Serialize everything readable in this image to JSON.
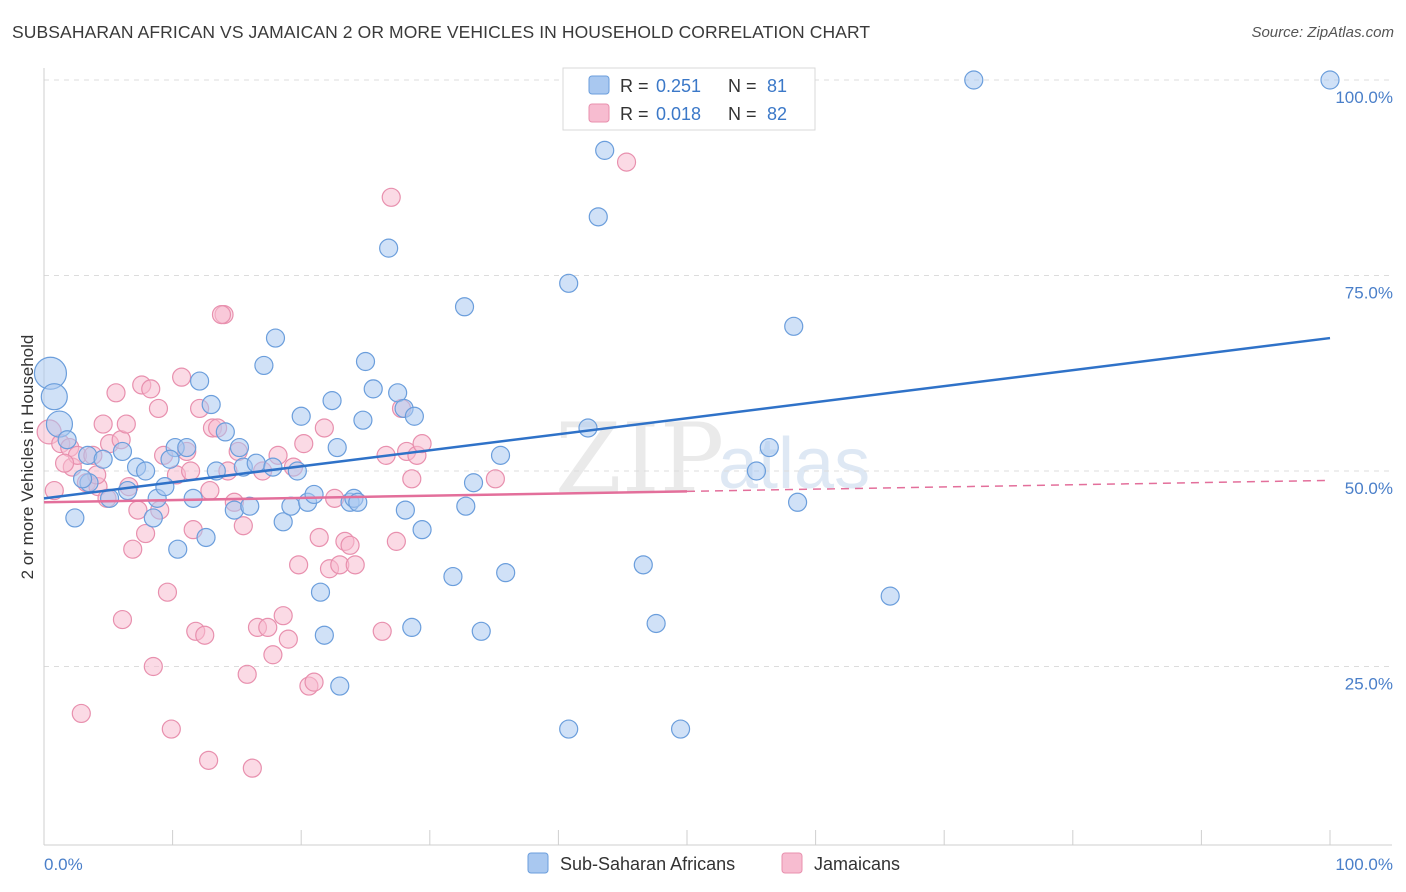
{
  "title": "SUBSAHARAN AFRICAN VS JAMAICAN 2 OR MORE VEHICLES IN HOUSEHOLD CORRELATION CHART",
  "source": "Source: ZipAtlas.com",
  "watermark": {
    "zip": "ZIP",
    "atlas": "atlas"
  },
  "legend": {
    "r_label": "R =",
    "n_label": "N =",
    "rows": [
      {
        "r": "0.251",
        "n": "81"
      },
      {
        "r": "0.018",
        "n": "82"
      }
    ]
  },
  "colors": {
    "blue_fill": "#a9c8f0",
    "blue_stroke": "#6b9edc",
    "blue_line": "#2f72c8",
    "pink_fill": "#f7bcd0",
    "pink_stroke": "#e890ae",
    "pink_line": "#e36f9b",
    "tick_text": "#4a7fc9"
  },
  "chart_data": {
    "type": "scatter",
    "title": "SUBSAHARAN AFRICAN VS JAMAICAN 2 OR MORE VEHICLES IN HOUSEHOLD CORRELATION CHART",
    "xlabel": "",
    "ylabel": "2 or more Vehicles in Household",
    "xlim": [
      0,
      100
    ],
    "ylim": [
      0,
      105
    ],
    "x_tick_labels": [
      "0.0%",
      "100.0%"
    ],
    "y_ticks": [
      25,
      50,
      75,
      100
    ],
    "y_tick_labels": [
      "25.0%",
      "50.0%",
      "75.0%",
      "100.0%"
    ],
    "grid": true,
    "legend_position": "top-center",
    "series": [
      {
        "name": "Sub-Saharan Africans",
        "color": "#a9c8f0",
        "trend": {
          "x": [
            0,
            100
          ],
          "y": [
            46.5,
            67.0
          ]
        },
        "points": [
          [
            0.5,
            62.5
          ],
          [
            0.8,
            59.5
          ],
          [
            1.2,
            56.0
          ],
          [
            1.8,
            54.0
          ],
          [
            2.4,
            44.0
          ],
          [
            3.5,
            48.5
          ],
          [
            3.4,
            52.0
          ],
          [
            4.6,
            51.5
          ],
          [
            5.1,
            46.5
          ],
          [
            6.1,
            52.5
          ],
          [
            7.2,
            50.5
          ],
          [
            7.9,
            50.0
          ],
          [
            8.5,
            44.0
          ],
          [
            8.8,
            46.5
          ],
          [
            9.4,
            48.0
          ],
          [
            10.2,
            53.0
          ],
          [
            10.4,
            40.0
          ],
          [
            11.1,
            53.0
          ],
          [
            11.6,
            46.5
          ],
          [
            12.1,
            61.5
          ],
          [
            12.6,
            41.5
          ],
          [
            13.0,
            58.5
          ],
          [
            13.4,
            50.0
          ],
          [
            14.1,
            55.0
          ],
          [
            14.8,
            45.0
          ],
          [
            15.2,
            53.0
          ],
          [
            15.5,
            50.5
          ],
          [
            16.0,
            45.5
          ],
          [
            16.5,
            51.0
          ],
          [
            17.1,
            63.5
          ],
          [
            17.8,
            50.5
          ],
          [
            18.0,
            67.0
          ],
          [
            18.6,
            43.5
          ],
          [
            19.2,
            45.5
          ],
          [
            19.7,
            50.0
          ],
          [
            20.0,
            57.0
          ],
          [
            20.5,
            46.0
          ],
          [
            21.0,
            47.0
          ],
          [
            21.5,
            34.5
          ],
          [
            21.8,
            29.0
          ],
          [
            22.4,
            59.0
          ],
          [
            22.8,
            53.0
          ],
          [
            23.0,
            22.5
          ],
          [
            23.8,
            46.0
          ],
          [
            24.1,
            46.5
          ],
          [
            24.4,
            46.0
          ],
          [
            24.8,
            56.5
          ],
          [
            25.0,
            64.0
          ],
          [
            25.6,
            60.5
          ],
          [
            26.8,
            78.5
          ],
          [
            27.5,
            60.0
          ],
          [
            28.0,
            58.0
          ],
          [
            28.1,
            45.0
          ],
          [
            28.8,
            57.0
          ],
          [
            28.6,
            30.0
          ],
          [
            29.4,
            42.5
          ],
          [
            31.8,
            36.5
          ],
          [
            32.7,
            71.0
          ],
          [
            32.8,
            45.5
          ],
          [
            33.4,
            48.5
          ],
          [
            34.0,
            29.5
          ],
          [
            35.5,
            52.0
          ],
          [
            35.9,
            37.0
          ],
          [
            40.8,
            74.0
          ],
          [
            40.8,
            17.0
          ],
          [
            42.3,
            55.5
          ],
          [
            43.1,
            82.5
          ],
          [
            43.6,
            91.0
          ],
          [
            46.6,
            38.0
          ],
          [
            47.6,
            30.5
          ],
          [
            49.5,
            17.0
          ],
          [
            55.4,
            50.0
          ],
          [
            56.4,
            53.0
          ],
          [
            58.3,
            68.5
          ],
          [
            58.6,
            46.0
          ],
          [
            65.8,
            34.0
          ],
          [
            72.3,
            100.0
          ],
          [
            100.0,
            100.0
          ],
          [
            3.0,
            49.0
          ],
          [
            6.5,
            47.5
          ],
          [
            9.8,
            51.5
          ]
        ]
      },
      {
        "name": "Jamaicans",
        "color": "#f7bcd0",
        "trend": {
          "x": [
            0,
            100
          ],
          "y": [
            46.0,
            48.8
          ]
        },
        "trend_solid_to_x": 50,
        "points": [
          [
            0.4,
            55.0
          ],
          [
            0.8,
            47.5
          ],
          [
            1.3,
            53.5
          ],
          [
            2.0,
            53.0
          ],
          [
            2.2,
            50.5
          ],
          [
            2.6,
            52.0
          ],
          [
            2.9,
            19.0
          ],
          [
            3.3,
            48.5
          ],
          [
            3.8,
            52.0
          ],
          [
            4.2,
            48.0
          ],
          [
            4.6,
            56.0
          ],
          [
            4.9,
            46.5
          ],
          [
            5.1,
            53.5
          ],
          [
            5.6,
            60.0
          ],
          [
            6.0,
            54.0
          ],
          [
            6.1,
            31.0
          ],
          [
            6.4,
            56.0
          ],
          [
            6.6,
            48.0
          ],
          [
            6.9,
            40.0
          ],
          [
            7.3,
            45.0
          ],
          [
            7.6,
            61.0
          ],
          [
            7.9,
            42.0
          ],
          [
            8.3,
            60.5
          ],
          [
            8.5,
            25.0
          ],
          [
            8.9,
            58.0
          ],
          [
            9.3,
            52.0
          ],
          [
            9.6,
            34.5
          ],
          [
            9.9,
            17.0
          ],
          [
            10.3,
            49.5
          ],
          [
            10.7,
            62.0
          ],
          [
            11.1,
            52.5
          ],
          [
            11.4,
            50.0
          ],
          [
            11.8,
            29.5
          ],
          [
            12.1,
            58.0
          ],
          [
            12.5,
            29.0
          ],
          [
            12.8,
            13.0
          ],
          [
            13.1,
            55.5
          ],
          [
            13.5,
            55.5
          ],
          [
            14.0,
            70.0
          ],
          [
            14.3,
            50.0
          ],
          [
            14.8,
            46.0
          ],
          [
            15.1,
            52.5
          ],
          [
            15.5,
            43.0
          ],
          [
            15.8,
            24.0
          ],
          [
            16.2,
            12.0
          ],
          [
            16.6,
            30.0
          ],
          [
            17.0,
            50.0
          ],
          [
            17.4,
            30.0
          ],
          [
            17.8,
            26.5
          ],
          [
            18.2,
            52.0
          ],
          [
            18.6,
            31.5
          ],
          [
            19.0,
            28.5
          ],
          [
            19.4,
            50.5
          ],
          [
            19.8,
            38.0
          ],
          [
            20.2,
            53.5
          ],
          [
            20.6,
            22.5
          ],
          [
            21.0,
            23.0
          ],
          [
            21.4,
            41.5
          ],
          [
            21.8,
            55.5
          ],
          [
            22.2,
            37.5
          ],
          [
            22.6,
            46.5
          ],
          [
            23.0,
            38.0
          ],
          [
            23.4,
            41.0
          ],
          [
            23.8,
            40.5
          ],
          [
            24.2,
            38.0
          ],
          [
            26.3,
            29.5
          ],
          [
            26.6,
            52.0
          ],
          [
            27.0,
            85.0
          ],
          [
            27.4,
            41.0
          ],
          [
            27.8,
            58.0
          ],
          [
            28.2,
            52.5
          ],
          [
            28.6,
            49.0
          ],
          [
            29.0,
            52.0
          ],
          [
            29.4,
            53.5
          ],
          [
            35.1,
            49.0
          ],
          [
            45.3,
            89.5
          ],
          [
            13.8,
            70.0
          ],
          [
            11.6,
            42.5
          ],
          [
            1.6,
            51.0
          ],
          [
            4.1,
            49.5
          ],
          [
            9.0,
            45.0
          ],
          [
            12.9,
            47.5
          ]
        ]
      }
    ]
  },
  "bottom_legend": [
    "Sub-Saharan Africans",
    "Jamaicans"
  ]
}
